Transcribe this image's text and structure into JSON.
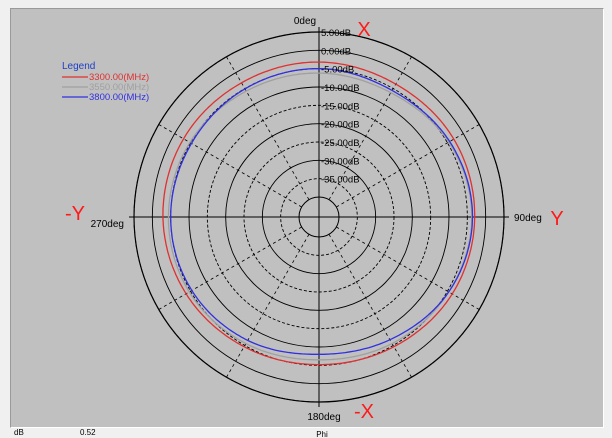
{
  "chart_data": {
    "type": "polar",
    "legend": {
      "title": "Legend",
      "placement": "top-left"
    },
    "angle_labels": [
      {
        "angle": 0,
        "text": "0deg"
      },
      {
        "angle": 90,
        "text": "90deg"
      },
      {
        "angle": 180,
        "text": "180deg"
      },
      {
        "angle": 270,
        "text": "270deg"
      }
    ],
    "axis_annotations": [
      {
        "angle": 0,
        "text": "X"
      },
      {
        "angle": 90,
        "text": "Y"
      },
      {
        "angle": 180,
        "text": "-X"
      },
      {
        "angle": 270,
        "text": "-Y"
      }
    ],
    "radial_ticks": [
      "5.00dB",
      "0.00dB",
      "-5.00dB",
      "-10.00dB",
      "-15.00dB",
      "-20.00dB",
      "-25.00dB",
      "-30.00dB",
      "-35.00dB"
    ],
    "radial_tick_values": [
      5,
      0,
      -5,
      -10,
      -15,
      -20,
      -25,
      -30,
      -35
    ],
    "radial_range": [
      -40,
      5
    ],
    "grid": true,
    "series": [
      {
        "name": "3300.00(MHz)",
        "color": "#e03030",
        "angles": [
          0,
          30,
          60,
          90,
          120,
          150,
          180,
          210,
          240,
          270,
          300,
          330
        ],
        "values": [
          -3.2,
          -3.6,
          -3.0,
          -3.0,
          -3.5,
          -4.6,
          -5.2,
          -4.6,
          -3.6,
          -2.9,
          -2.8,
          -3.2
        ]
      },
      {
        "name": "3550.00(MHz)",
        "color": "#a0a0a0",
        "angles": [
          0,
          30,
          60,
          90,
          120,
          150,
          180,
          210,
          240,
          270,
          300,
          330
        ],
        "values": [
          -6.2,
          -6.3,
          -4.6,
          -3.8,
          -4.6,
          -5.6,
          -6.5,
          -5.6,
          -4.6,
          -4.4,
          -4.8,
          -5.8
        ]
      },
      {
        "name": "3800.00(MHz)",
        "color": "#3030e0",
        "angles": [
          0,
          30,
          60,
          90,
          120,
          150,
          180,
          210,
          240,
          270,
          300,
          330
        ],
        "values": [
          -5.0,
          -5.6,
          -4.3,
          -3.6,
          -4.6,
          -6.8,
          -8.0,
          -6.6,
          -5.4,
          -5.0,
          -5.3,
          -5.1
        ]
      }
    ],
    "xlabel": "Phi"
  },
  "status_bar": {
    "unit": "dB",
    "value": "0.52"
  },
  "colors": {
    "background": "#c0c0c0",
    "annotation": "#ff1a1a",
    "legend_title": "#1f3fc8"
  }
}
